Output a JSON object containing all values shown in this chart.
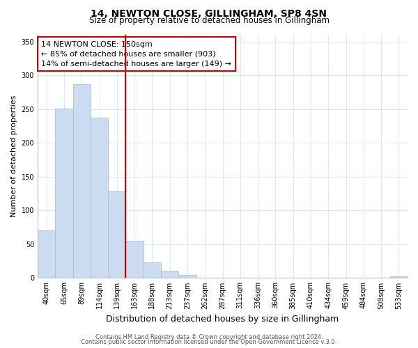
{
  "title": "14, NEWTON CLOSE, GILLINGHAM, SP8 4SN",
  "subtitle": "Size of property relative to detached houses in Gillingham",
  "xlabel": "Distribution of detached houses by size in Gillingham",
  "ylabel": "Number of detached properties",
  "bar_labels": [
    "40sqm",
    "65sqm",
    "89sqm",
    "114sqm",
    "139sqm",
    "163sqm",
    "188sqm",
    "213sqm",
    "237sqm",
    "262sqm",
    "287sqm",
    "311sqm",
    "336sqm",
    "360sqm",
    "385sqm",
    "410sqm",
    "434sqm",
    "459sqm",
    "484sqm",
    "508sqm",
    "533sqm"
  ],
  "bar_values": [
    70,
    251,
    287,
    237,
    128,
    55,
    23,
    11,
    5,
    0,
    0,
    0,
    0,
    0,
    0,
    0,
    0,
    0,
    0,
    0,
    2
  ],
  "bar_color": "#ccdcf0",
  "bar_edge_color": "#a8c0dc",
  "vline_x": 4.5,
  "vline_color": "#cc0000",
  "annotation_line1": "14 NEWTON CLOSE: 150sqm",
  "annotation_line2": "← 85% of detached houses are smaller (903)",
  "annotation_line3": "14% of semi-detached houses are larger (149) →",
  "annotation_box_color": "#ffffff",
  "annotation_box_edge": "#cc0000",
  "ylim": [
    0,
    360
  ],
  "yticks": [
    0,
    50,
    100,
    150,
    200,
    250,
    300,
    350
  ],
  "footer1": "Contains HM Land Registry data © Crown copyright and database right 2024.",
  "footer2": "Contains public sector information licensed under the Open Government Licence v.3.0.",
  "background_color": "#ffffff",
  "grid_color": "#dce8f4",
  "title_fontsize": 10,
  "subtitle_fontsize": 8.5,
  "xlabel_fontsize": 9,
  "ylabel_fontsize": 8,
  "tick_fontsize": 7,
  "footer_fontsize": 6,
  "annot_fontsize": 8
}
